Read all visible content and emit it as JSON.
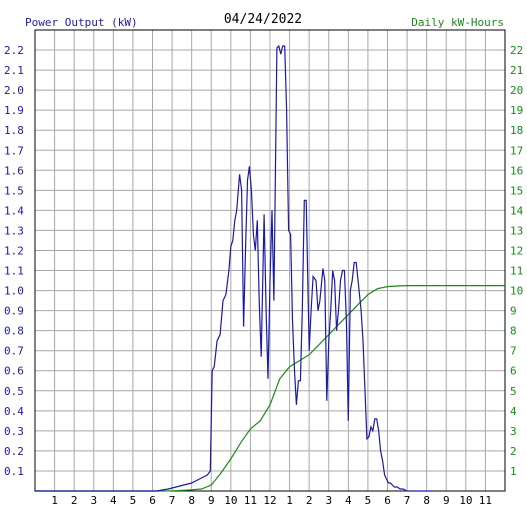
{
  "chart_data": {
    "type": "line",
    "title": "04/24/2022",
    "y_left_label": "Power Output (kW)",
    "y_right_label": "Daily kW-Hours",
    "x_ticks": [
      "1",
      "2",
      "3",
      "4",
      "5",
      "6",
      "7",
      "8",
      "9",
      "10",
      "11",
      "12",
      "1",
      "2",
      "3",
      "4",
      "5",
      "6",
      "7",
      "8",
      "9",
      "10",
      "11"
    ],
    "x_range": [
      0,
      24
    ],
    "y_left_range": [
      0,
      2.3
    ],
    "y_left_ticks": [
      0.1,
      0.2,
      0.3,
      0.4,
      0.5,
      0.6,
      0.7,
      0.8,
      0.9,
      1.0,
      1.1,
      1.2,
      1.3,
      1.4,
      1.5,
      1.6,
      1.7,
      1.8,
      1.9,
      2.0,
      2.1,
      2.2
    ],
    "y_right_range": [
      0,
      23
    ],
    "y_right_ticks": [
      1,
      2,
      3,
      4,
      5,
      6,
      7,
      8,
      9,
      10,
      11,
      12,
      13,
      14,
      15,
      16,
      17,
      18,
      19,
      20,
      21,
      22
    ],
    "grid": true,
    "colors": {
      "power": "#1a1aa6",
      "energy": "#1a8a1a",
      "grid": "#a8a8a8",
      "axis_left": "#1a1aa6",
      "axis_right": "#1a8a1a"
    },
    "series": [
      {
        "name": "Power Output (kW)",
        "axis": "left",
        "x": [
          0,
          6.2,
          6.8,
          7.2,
          7.6,
          8.0,
          8.4,
          8.8,
          8.95,
          9.05,
          9.15,
          9.3,
          9.45,
          9.6,
          9.75,
          9.9,
          10.0,
          10.1,
          10.2,
          10.3,
          10.45,
          10.55,
          10.65,
          10.75,
          10.85,
          10.95,
          11.05,
          11.15,
          11.25,
          11.35,
          11.45,
          11.55,
          11.7,
          11.8,
          11.9,
          12.0,
          12.1,
          12.2,
          12.35,
          12.45,
          12.55,
          12.65,
          12.75,
          12.85,
          12.95,
          13.05,
          13.15,
          13.25,
          13.35,
          13.45,
          13.55,
          13.65,
          13.75,
          13.85,
          14.0,
          14.1,
          14.2,
          14.35,
          14.45,
          14.55,
          14.7,
          14.8,
          14.9,
          15.0,
          15.1,
          15.2,
          15.3,
          15.4,
          15.5,
          15.6,
          15.7,
          15.8,
          15.9,
          16.0,
          16.1,
          16.2,
          16.3,
          16.4,
          16.55,
          16.65,
          16.75,
          16.85,
          16.95,
          17.05,
          17.15,
          17.25,
          17.35,
          17.45,
          17.55,
          17.65,
          17.75,
          17.85,
          17.95,
          18.05,
          18.15,
          18.25,
          18.35,
          18.5,
          18.65,
          18.8,
          19.0,
          19.4,
          19.7,
          20.0,
          20.3
        ],
        "y": [
          0,
          0,
          0.01,
          0.02,
          0.03,
          0.04,
          0.06,
          0.08,
          0.1,
          0.6,
          0.62,
          0.75,
          0.78,
          0.95,
          0.98,
          1.1,
          1.22,
          1.25,
          1.35,
          1.4,
          1.58,
          1.5,
          0.82,
          1.2,
          1.55,
          1.62,
          1.5,
          1.28,
          1.2,
          1.35,
          0.95,
          0.67,
          1.38,
          0.9,
          0.56,
          1.05,
          1.4,
          0.95,
          2.21,
          2.22,
          2.18,
          2.22,
          2.22,
          1.9,
          1.3,
          1.28,
          0.85,
          0.6,
          0.43,
          0.55,
          0.55,
          0.9,
          1.45,
          1.45,
          0.7,
          0.9,
          1.07,
          1.05,
          0.9,
          0.95,
          1.11,
          1.05,
          0.45,
          0.75,
          0.9,
          1.1,
          1.05,
          0.8,
          0.9,
          1.05,
          1.1,
          1.1,
          0.85,
          0.35,
          1.0,
          1.05,
          1.14,
          1.14,
          1.0,
          0.9,
          0.75,
          0.5,
          0.26,
          0.27,
          0.32,
          0.3,
          0.36,
          0.36,
          0.3,
          0.2,
          0.15,
          0.08,
          0.06,
          0.04,
          0.04,
          0.03,
          0.02,
          0.02,
          0.01,
          0.01,
          0,
          0,
          0,
          0,
          0
        ]
      },
      {
        "name": "Daily kW-Hours",
        "axis": "right",
        "x": [
          0,
          6.5,
          7.0,
          7.5,
          8.0,
          8.5,
          9.0,
          9.5,
          10.0,
          10.5,
          11.0,
          11.5,
          12.0,
          12.5,
          13.0,
          13.5,
          14.0,
          14.5,
          15.0,
          15.5,
          16.0,
          16.5,
          17.0,
          17.5,
          18.0,
          18.5,
          19.0,
          19.5,
          20.0,
          21.0,
          22.0,
          23.0,
          24.0
        ],
        "y": [
          0,
          0,
          0.01,
          0.03,
          0.06,
          0.1,
          0.3,
          0.9,
          1.6,
          2.4,
          3.1,
          3.5,
          4.3,
          5.6,
          6.2,
          6.5,
          6.8,
          7.3,
          7.8,
          8.3,
          8.8,
          9.3,
          9.8,
          10.1,
          10.2,
          10.23,
          10.25,
          10.25,
          10.25,
          10.25,
          10.25,
          10.25,
          10.25
        ]
      }
    ]
  }
}
